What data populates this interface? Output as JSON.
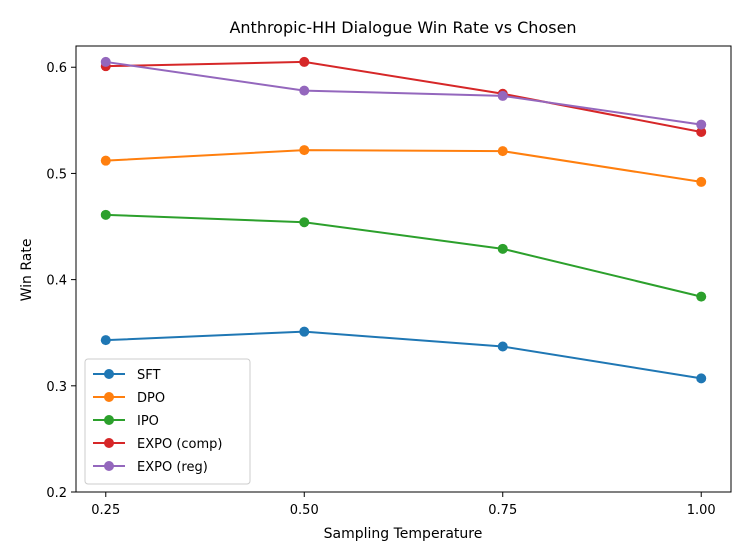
{
  "chart_data": {
    "type": "line",
    "title": "Anthropic-HH Dialogue Win Rate vs Chosen",
    "xlabel": "Sampling Temperature",
    "ylabel": "Win Rate",
    "x": [
      0.25,
      0.5,
      0.75,
      1.0
    ],
    "x_tick_labels": [
      "0.25",
      "0.50",
      "0.75",
      "1.00"
    ],
    "y_ticks": [
      0.2,
      0.3,
      0.4,
      0.5,
      0.6
    ],
    "y_tick_labels": [
      "0.2",
      "0.3",
      "0.4",
      "0.5",
      "0.6"
    ],
    "ylim": [
      0.2,
      0.62
    ],
    "grid": false,
    "legend_position": "lower-left",
    "series": [
      {
        "name": "SFT",
        "color": "#1f77b4",
        "values": [
          0.343,
          0.351,
          0.337,
          0.307
        ]
      },
      {
        "name": "DPO",
        "color": "#ff7f0e",
        "values": [
          0.512,
          0.522,
          0.521,
          0.492
        ]
      },
      {
        "name": "IPO",
        "color": "#2ca02c",
        "values": [
          0.461,
          0.454,
          0.429,
          0.384
        ]
      },
      {
        "name": "EXPO (comp)",
        "color": "#d62728",
        "values": [
          0.601,
          0.605,
          0.575,
          0.539
        ]
      },
      {
        "name": "EXPO (reg)",
        "color": "#9467bd",
        "values": [
          0.605,
          0.578,
          0.573,
          0.546
        ]
      }
    ]
  }
}
